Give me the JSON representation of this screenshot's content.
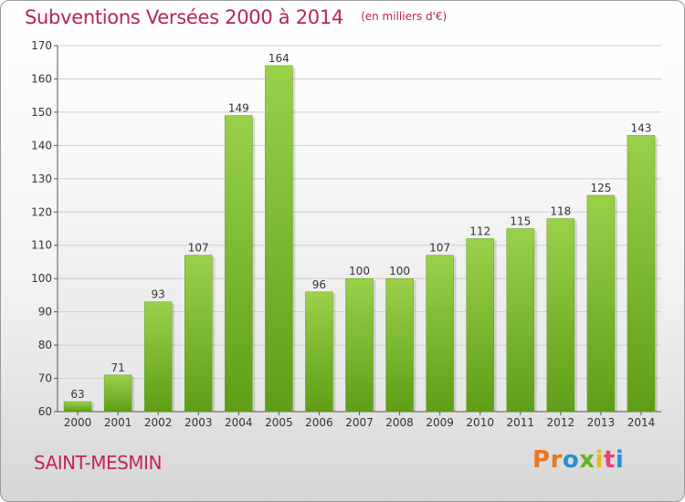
{
  "header": {
    "title": "Subventions Versées 2000 à 2014",
    "unit": "(en milliers d'€)"
  },
  "footer": {
    "commune": "SAINT-MESMIN",
    "logo_text": "Proxiti",
    "logo_colors": [
      "#e87722",
      "#e87722",
      "#2a8fd0",
      "#6ab023",
      "#e8b81a",
      "#e8417b",
      "#2a8fd0"
    ]
  },
  "colors": {
    "title": "#b5245a",
    "bar_top": "#9ad14a",
    "bar_bottom": "#5e9e16"
  },
  "chart_data": {
    "type": "bar",
    "categories": [
      "2000",
      "2001",
      "2002",
      "2003",
      "2004",
      "2005",
      "2006",
      "2007",
      "2008",
      "2009",
      "2010",
      "2011",
      "2012",
      "2013",
      "2014"
    ],
    "values": [
      63,
      71,
      93,
      107,
      149,
      164,
      96,
      100,
      100,
      107,
      112,
      115,
      118,
      125,
      143
    ],
    "ylim": [
      60,
      170
    ],
    "yticks": [
      60,
      70,
      80,
      90,
      100,
      110,
      120,
      130,
      140,
      150,
      160,
      170
    ],
    "grid": true,
    "data_labels": true
  }
}
